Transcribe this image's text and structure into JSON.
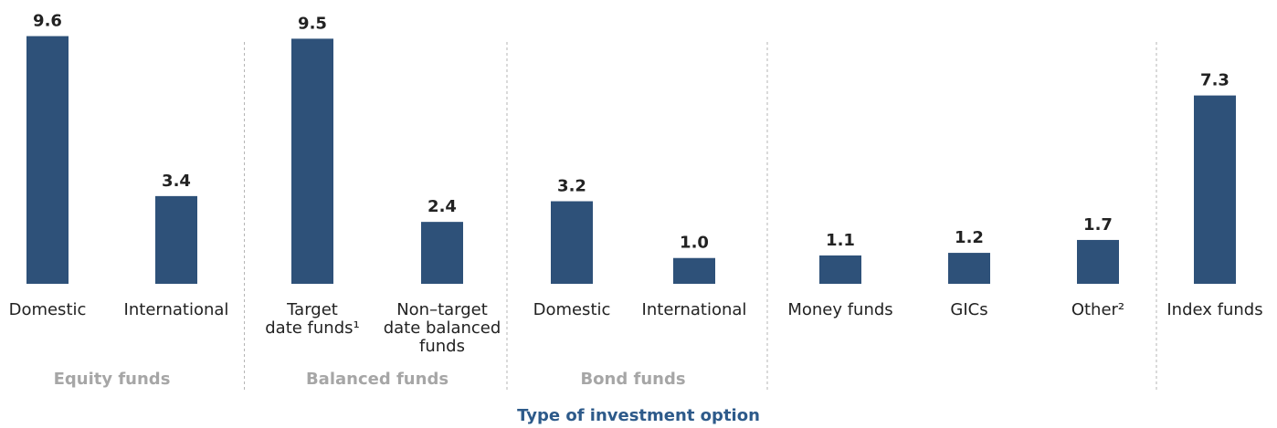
{
  "chart_data": {
    "type": "bar",
    "categories": [
      "Domestic",
      "International",
      "Target date funds¹",
      "Non–target date balanced funds",
      "Domestic",
      "International",
      "Money funds",
      "GICs",
      "Other²",
      "Index funds"
    ],
    "values": [
      9.6,
      3.4,
      9.5,
      2.4,
      3.2,
      1.0,
      1.1,
      1.2,
      1.7,
      7.3
    ],
    "value_labels": [
      "9.6",
      "3.4",
      "9.5",
      "2.4",
      "3.2",
      "1.0",
      "1.1",
      "1.2",
      "1.7",
      "7.3"
    ],
    "color": "#2e5179",
    "ylim": [
      0,
      11
    ],
    "groups": [
      {
        "label": "Equity funds",
        "count": 2
      },
      {
        "label": "Balanced funds",
        "count": 2
      },
      {
        "label": "Bond funds",
        "count": 2
      },
      {
        "label": null,
        "count": 3
      },
      {
        "label": null,
        "count": 1
      }
    ],
    "x_label": "Type of investment option"
  }
}
